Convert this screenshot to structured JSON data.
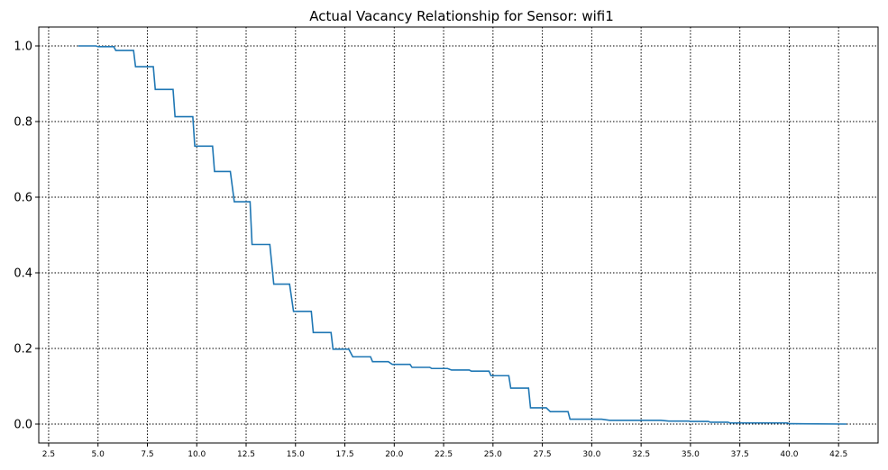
{
  "chart_data": {
    "type": "line",
    "title": "Actual Vacancy Relationship for Sensor: wifi1",
    "xlabel": "",
    "ylabel": "",
    "xlim": [
      2.0,
      44.5
    ],
    "ylim": [
      -0.05,
      1.05
    ],
    "x_ticks": [
      2.5,
      5.0,
      7.5,
      10.0,
      12.5,
      15.0,
      17.5,
      20.0,
      22.5,
      25.0,
      27.5,
      30.0,
      32.5,
      35.0,
      37.5,
      40.0,
      42.5
    ],
    "x_tick_labels": [
      "2.5",
      "5.0",
      "7.5",
      "10.0",
      "12.5",
      "15.0",
      "17.5",
      "20.0",
      "22.5",
      "25.0",
      "27.5",
      "30.0",
      "32.5",
      "35.0",
      "37.5",
      "40.0",
      "42.5"
    ],
    "y_ticks": [
      0.0,
      0.2,
      0.4,
      0.6,
      0.8,
      1.0
    ],
    "y_tick_labels": [
      "0.0",
      "0.2",
      "0.4",
      "0.6",
      "0.8",
      "1.0"
    ],
    "grid": true,
    "grid_style": "dotted",
    "line_color": "#1f77b4",
    "series": [
      {
        "x": [
          4.0,
          4.9,
          5.0,
          5.8,
          5.9,
          6.8,
          6.9,
          7.8,
          7.9,
          8.8,
          8.9,
          9.8,
          9.9,
          10.8,
          10.9,
          11.7,
          11.9,
          12.7,
          12.8,
          13.7,
          13.9,
          14.7,
          14.9,
          15.8,
          15.9,
          16.8,
          16.9,
          17.7,
          17.9,
          18.8,
          18.9,
          19.7,
          19.9,
          20.8,
          20.9,
          21.8,
          21.9,
          22.7,
          22.9,
          23.8,
          23.9,
          24.8,
          24.9,
          25.8,
          25.9,
          26.8,
          26.9,
          27.7,
          27.9,
          28.8,
          28.9,
          30.5,
          30.9,
          33.5,
          33.9,
          34.9,
          35.0,
          35.9,
          36.0,
          36.9,
          37.0,
          39.9,
          40.0,
          42.9
        ],
        "y": [
          1.0,
          1.0,
          0.998,
          0.998,
          0.988,
          0.988,
          0.945,
          0.945,
          0.885,
          0.885,
          0.813,
          0.813,
          0.735,
          0.735,
          0.668,
          0.668,
          0.588,
          0.588,
          0.475,
          0.475,
          0.37,
          0.37,
          0.298,
          0.298,
          0.242,
          0.242,
          0.198,
          0.198,
          0.178,
          0.178,
          0.165,
          0.165,
          0.158,
          0.158,
          0.15,
          0.15,
          0.147,
          0.147,
          0.143,
          0.143,
          0.14,
          0.14,
          0.128,
          0.128,
          0.095,
          0.095,
          0.043,
          0.043,
          0.033,
          0.033,
          0.013,
          0.013,
          0.01,
          0.01,
          0.008,
          0.008,
          0.007,
          0.007,
          0.005,
          0.005,
          0.003,
          0.003,
          0.001,
          0.0
        ]
      }
    ]
  }
}
